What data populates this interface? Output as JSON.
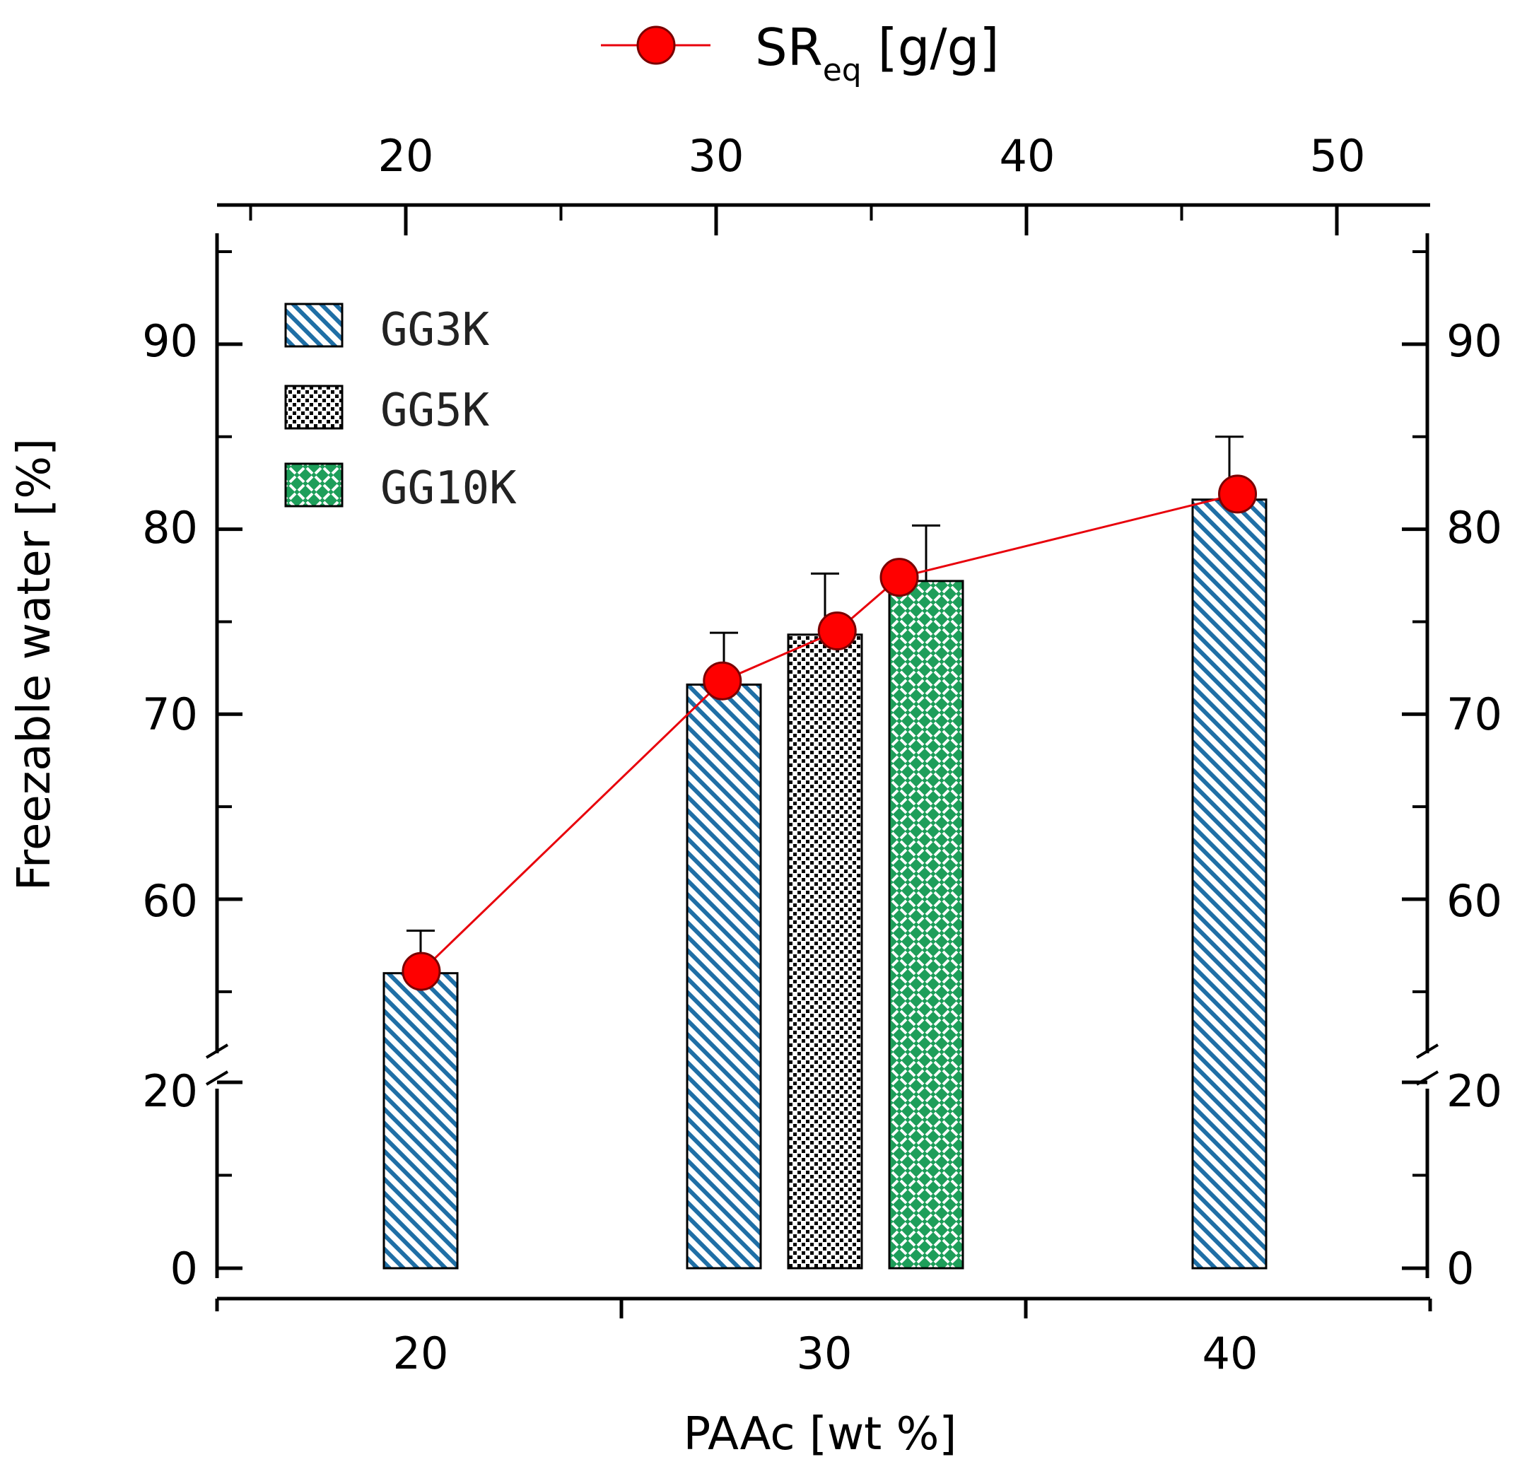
{
  "chart_data": {
    "type": "bar",
    "xlabel": "PAAc [wt %]",
    "ylabel": "Freezable water [%]",
    "x_ticks": [
      "20",
      "30",
      "40"
    ],
    "top_x_ticks": [
      "20",
      "30",
      "40",
      "50"
    ],
    "y_ticks": [
      "0",
      "20",
      "60",
      "70",
      "80",
      "90"
    ],
    "right_y_ticks": [
      "0",
      "20",
      "60",
      "70",
      "80",
      "90"
    ],
    "axis_break": "between 20 and ~55 on both y axes",
    "legend_position": "top-left",
    "series_legend": [
      {
        "name": "GG3K",
        "pattern": "blue diagonal hatch",
        "color": "#1f6fa6"
      },
      {
        "name": "GG5K",
        "pattern": "black checker dots",
        "color": "#000000"
      },
      {
        "name": "GG10K",
        "pattern": "green weave",
        "color": "#1e9e5a"
      }
    ],
    "bars": [
      {
        "series": "GG3K",
        "paac_wt": 20,
        "freezable_water": 56,
        "error": 2.3
      },
      {
        "series": "GG3K",
        "paac_wt": 27.5,
        "freezable_water": 71.6,
        "error": 2.8
      },
      {
        "series": "GG5K",
        "paac_wt": 30,
        "freezable_water": 74.3,
        "error": 3.3
      },
      {
        "series": "GG10K",
        "paac_wt": 32.5,
        "freezable_water": 77.2,
        "error": 3.0
      },
      {
        "series": "GG3K",
        "paac_wt": 40,
        "freezable_water": 81.6,
        "error": 3.4
      }
    ],
    "line_series": {
      "name_main": "SR",
      "name_sub": "eq",
      "name_rest": " [g/g]",
      "color": "#e8000b",
      "top_axis_x": [
        20.5,
        30.2,
        33.9,
        35.9,
        46.8
      ],
      "values_in_left_axis_units": [
        56.1,
        71.8,
        74.5,
        77.4,
        81.9
      ]
    }
  }
}
